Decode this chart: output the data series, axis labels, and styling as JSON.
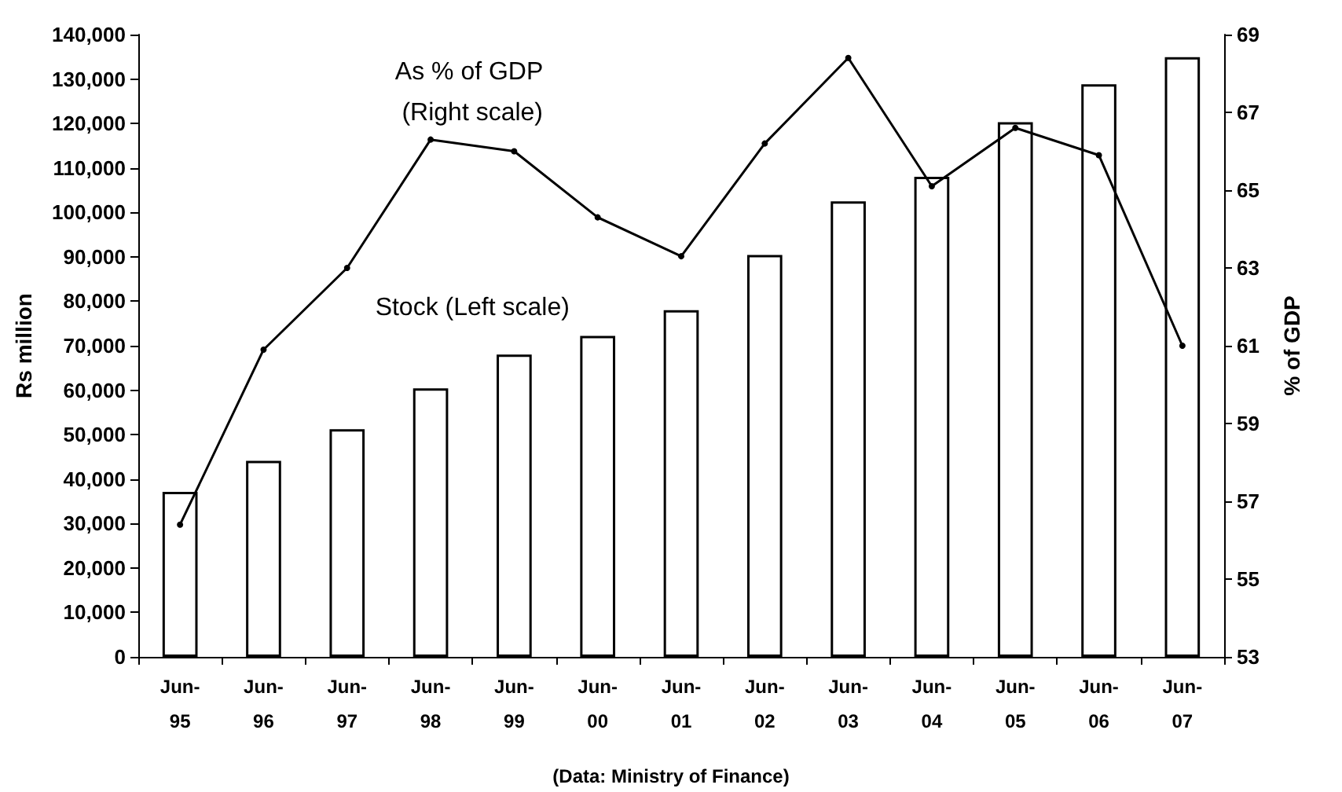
{
  "chart_data": {
    "type": "bar",
    "categories": [
      "Jun-95",
      "Jun-96",
      "Jun-97",
      "Jun-98",
      "Jun-99",
      "Jun-00",
      "Jun-01",
      "Jun-02",
      "Jun-03",
      "Jun-04",
      "Jun-05",
      "Jun-06",
      "Jun-07"
    ],
    "series": [
      {
        "name": "Stock (Left scale)",
        "color": "#ffffff",
        "values": [
          37100,
          44100,
          51200,
          60400,
          68000,
          72200,
          78000,
          90400,
          102500,
          108000,
          120300,
          128800,
          134900
        ]
      },
      {
        "name": "As % of GDP (Right scale)",
        "type": "line",
        "axis": "y2",
        "color": "#000000",
        "marker": "circle",
        "line_style": "solid",
        "values": [
          56.4,
          60.9,
          63.0,
          66.3,
          66.0,
          64.3,
          63.3,
          66.2,
          68.4,
          65.1,
          66.6,
          65.9,
          61.0
        ]
      }
    ],
    "ylabel": "Rs million",
    "y2label": "% of GDP",
    "ylim": [
      0,
      140000
    ],
    "yticks": [
      0,
      {
        "value": 10000,
        "label": "10,000"
      },
      {
        "value": 20000,
        "label": "20,000"
      },
      {
        "value": 30000,
        "label": "30,000"
      },
      {
        "value": 40000,
        "label": "40,000"
      },
      {
        "value": 50000,
        "label": "50,000"
      },
      {
        "value": 60000,
        "label": "60,000"
      },
      {
        "value": 70000,
        "label": "70,000"
      },
      {
        "value": 80000,
        "label": "80,000"
      },
      {
        "value": 90000,
        "label": "90,000"
      },
      {
        "value": 100000,
        "label": "100,000"
      },
      {
        "value": 110000,
        "label": "110,000"
      },
      {
        "value": 120000,
        "label": "120,000"
      },
      {
        "value": 130000,
        "label": "130,000"
      },
      {
        "value": 140000,
        "label": "140,000"
      }
    ],
    "y2lim": [
      53,
      69
    ],
    "y2ticks": [
      53,
      55,
      57,
      59,
      61,
      63,
      65,
      67,
      69
    ],
    "annotations": [
      "(Data: Ministry of Finance)"
    ],
    "grid": false,
    "legend": false
  }
}
